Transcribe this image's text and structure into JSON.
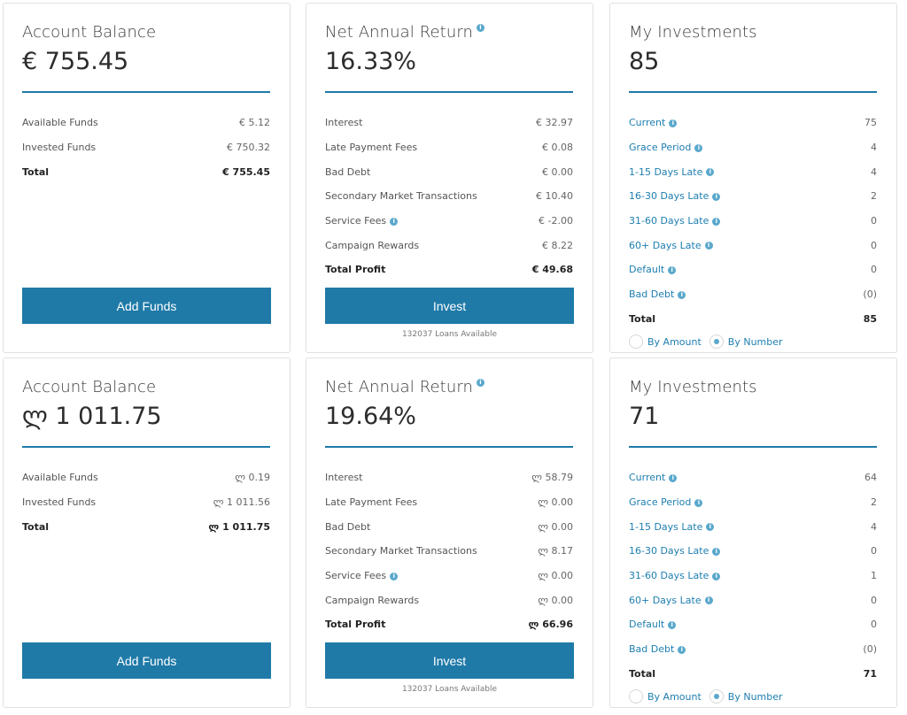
{
  "colors": {
    "accent": "#1f7aa8",
    "link": "#1e7eb0",
    "info": "#5aa8cc"
  },
  "top": {
    "balance": {
      "title": "Account Balance",
      "value": "€ 755.45",
      "rows": [
        {
          "label": "Available Funds",
          "value": "€ 5.12"
        },
        {
          "label": "Invested Funds",
          "value": "€ 750.32"
        },
        {
          "label": "Total",
          "value": "€ 755.45"
        }
      ],
      "button": "Add Funds"
    },
    "returns": {
      "title": "Net Annual Return",
      "value": "16.33%",
      "rows": [
        {
          "label": "Interest",
          "value": "€ 32.97"
        },
        {
          "label": "Late Payment Fees",
          "value": "€ 0.08"
        },
        {
          "label": "Bad Debt",
          "value": "€ 0.00"
        },
        {
          "label": "Secondary Market Transactions",
          "value": "€ 10.40"
        },
        {
          "label": "Service Fees",
          "value": "€ -2.00"
        },
        {
          "label": "Campaign Rewards",
          "value": "€ 8.22"
        },
        {
          "label": "Total Profit",
          "value": "€ 49.68"
        }
      ],
      "button": "Invest",
      "note": "132037 Loans Available"
    },
    "investments": {
      "title": "My Investments",
      "value": "85",
      "rows": [
        {
          "label": "Current",
          "value": "75"
        },
        {
          "label": "Grace Period",
          "value": "4"
        },
        {
          "label": "1-15 Days Late",
          "value": "4"
        },
        {
          "label": "16-30 Days Late",
          "value": "2"
        },
        {
          "label": "31-60 Days Late",
          "value": "0"
        },
        {
          "label": "60+ Days Late",
          "value": "0"
        },
        {
          "label": "Default",
          "value": "0"
        },
        {
          "label": "Bad Debt",
          "value": "(0)"
        },
        {
          "label": "Total",
          "value": "85"
        }
      ],
      "radio_amount": "By Amount",
      "radio_number": "By Number"
    }
  },
  "bottom": {
    "balance": {
      "title": "Account Balance",
      "value": "ლ 1 011.75",
      "rows": [
        {
          "label": "Available Funds",
          "value": "ლ 0.19"
        },
        {
          "label": "Invested Funds",
          "value": "ლ 1 011.56"
        },
        {
          "label": "Total",
          "value": "ლ 1 011.75"
        }
      ],
      "button": "Add Funds"
    },
    "returns": {
      "title": "Net Annual Return",
      "value": "19.64%",
      "rows": [
        {
          "label": "Interest",
          "value": "ლ 58.79"
        },
        {
          "label": "Late Payment Fees",
          "value": "ლ 0.00"
        },
        {
          "label": "Bad Debt",
          "value": "ლ 0.00"
        },
        {
          "label": "Secondary Market Transactions",
          "value": "ლ 8.17"
        },
        {
          "label": "Service Fees",
          "value": "ლ 0.00"
        },
        {
          "label": "Campaign Rewards",
          "value": "ლ 0.00"
        },
        {
          "label": "Total Profit",
          "value": "ლ 66.96"
        }
      ],
      "button": "Invest",
      "note": "132037 Loans Available"
    },
    "investments": {
      "title": "My Investments",
      "value": "71",
      "rows": [
        {
          "label": "Current",
          "value": "64"
        },
        {
          "label": "Grace Period",
          "value": "2"
        },
        {
          "label": "1-15 Days Late",
          "value": "4"
        },
        {
          "label": "16-30 Days Late",
          "value": "0"
        },
        {
          "label": "31-60 Days Late",
          "value": "1"
        },
        {
          "label": "60+ Days Late",
          "value": "0"
        },
        {
          "label": "Default",
          "value": "0"
        },
        {
          "label": "Bad Debt",
          "value": "(0)"
        },
        {
          "label": "Total",
          "value": "71"
        }
      ],
      "radio_amount": "By Amount",
      "radio_number": "By Number"
    }
  }
}
